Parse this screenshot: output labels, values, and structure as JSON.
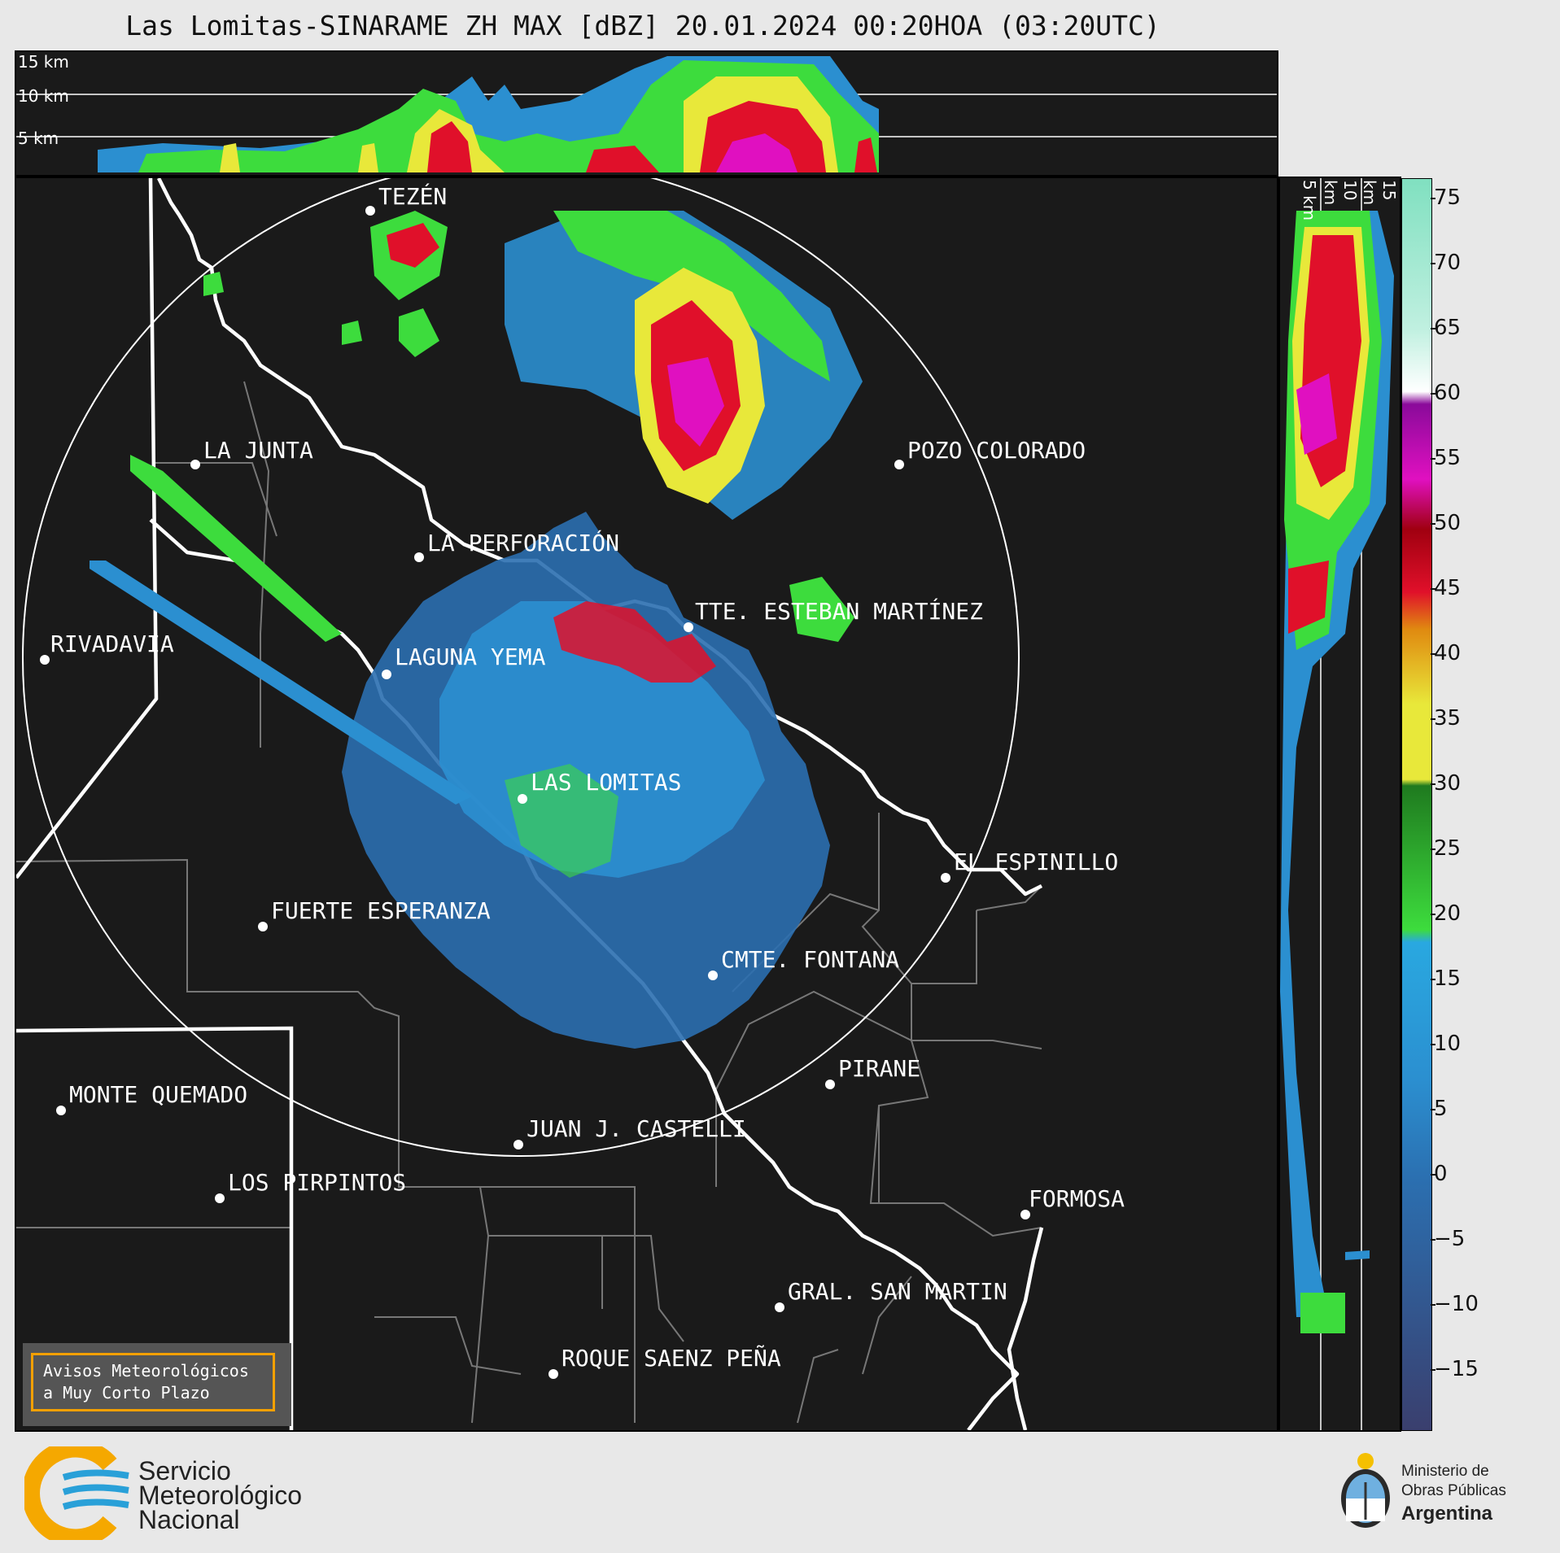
{
  "title": "Las Lomitas-SINARAME ZH MAX [dBZ] 20.01.2024 00:20HOA (03:20UTC)",
  "top_panel": {
    "heights": [
      "15 km",
      "10 km",
      "5 km"
    ]
  },
  "side_panel": {
    "heights": [
      "5 km",
      "10 km",
      "15 km"
    ]
  },
  "cities": [
    {
      "name": "TEZÉN"
    },
    {
      "name": "LA JUNTA"
    },
    {
      "name": "POZO COLORADO"
    },
    {
      "name": "LA PERFORACIÓN"
    },
    {
      "name": "RIVADAVIA"
    },
    {
      "name": "TTE. ESTEBAN MARTÍNEZ"
    },
    {
      "name": "LAGUNA YEMA"
    },
    {
      "name": "LAS LOMITAS"
    },
    {
      "name": "EL ESPINILLO"
    },
    {
      "name": "FUERTE ESPERANZA"
    },
    {
      "name": "CMTE. FONTANA"
    },
    {
      "name": "PIRANE"
    },
    {
      "name": "MONTE QUEMADO"
    },
    {
      "name": "JUAN J. CASTELLI"
    },
    {
      "name": "LOS PIRPINTOS"
    },
    {
      "name": "GRAL. SAN MARTIN"
    },
    {
      "name": "ROQUE SAENZ PEÑA"
    },
    {
      "name": "FORMOSA"
    }
  ],
  "colorbar": {
    "ticks": [
      "75",
      "70",
      "65",
      "60",
      "55",
      "50",
      "45",
      "40",
      "35",
      "30",
      "25",
      "20",
      "15",
      "10",
      "5",
      "0",
      "−5",
      "−10",
      "−15"
    ],
    "colors": {
      "blue_low": "#3a3f6e",
      "blue": "#2b8fd0",
      "cyan": "#29a8e0",
      "green": "#3ddc3d",
      "dark_green": "#1f7a1f",
      "yellow": "#e8e83a",
      "orange": "#e08a10",
      "red": "#e0102a",
      "dark_red": "#a00010",
      "magenta": "#e010c0",
      "purple": "#8a0a9a",
      "white": "#ffffff",
      "mint": "#80e0c0"
    }
  },
  "aviso": {
    "line1": "Avisos Meteorológicos",
    "line2": "a Muy Corto Plazo"
  },
  "smn": {
    "line1": "Servicio",
    "line2": "Meteorológico",
    "line3": "Nacional"
  },
  "ministerio": {
    "line1": "Ministerio de",
    "line2": "Obras Públicas",
    "line3": "Argentina"
  }
}
